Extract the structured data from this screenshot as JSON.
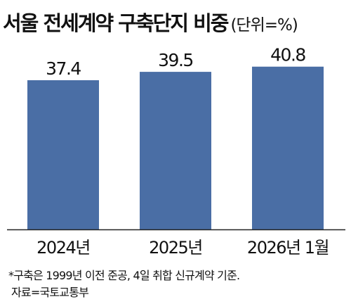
{
  "title": "서울 전세계약 구축단지 비중",
  "unit_label": "(단위=%)",
  "chart_data": {
    "type": "bar",
    "title": "서울 전세계약 구축단지 비중",
    "unit": "%",
    "categories": [
      "2024년",
      "2025년",
      "2026년 1월"
    ],
    "values": [
      37.4,
      39.5,
      40.8
    ],
    "value_labels": [
      "37.4",
      "39.5",
      "40.8"
    ],
    "ylim": [
      0,
      45
    ],
    "grid": false,
    "legend": "none",
    "bar_color": "#4a6ea5",
    "axis_color": "#222222"
  },
  "footnotes": {
    "definition": "*구축은 1999년 이전 준공, 4일 취합 신규계약 기준.",
    "source": "자료=국토교통부"
  }
}
